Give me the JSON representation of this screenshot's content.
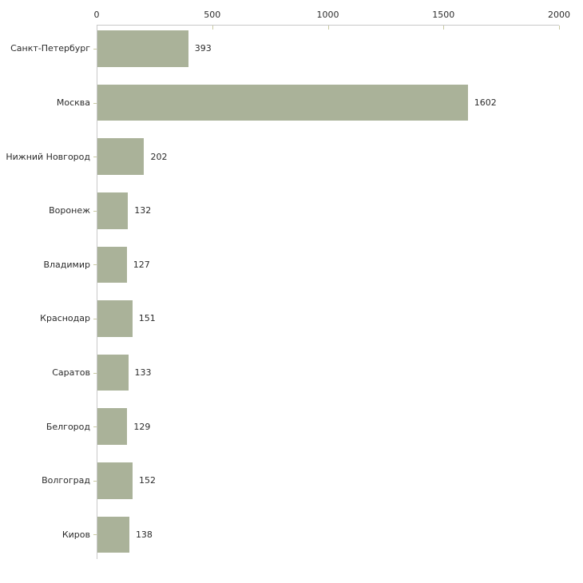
{
  "chart_data": {
    "type": "bar",
    "orientation": "horizontal",
    "title": "",
    "xlabel": "",
    "ylabel": "",
    "categories": [
      "Санкт-Петербург",
      "Москва",
      "Нижний Новгород",
      "Воронеж",
      "Владимир",
      "Краснодар",
      "Саратов",
      "Белгород",
      "Волгоград",
      "Киров"
    ],
    "values": [
      393,
      1602,
      202,
      132,
      127,
      151,
      133,
      129,
      152,
      138
    ],
    "value_labels": [
      "393",
      "1602",
      "202",
      "132",
      "127",
      "151",
      "133",
      "129",
      "152",
      "138"
    ],
    "xlim": [
      0,
      2000
    ],
    "x_ticks": [
      0,
      500,
      1000,
      1500,
      2000
    ],
    "x_tick_labels": [
      "0",
      "500",
      "1000",
      "1500",
      "2000"
    ],
    "grid": false,
    "legend_position": "none",
    "colors": {
      "bar_fill": "#aab299",
      "axis_line": "#c8c8c8",
      "tick_mark": "#c9c9a1",
      "text": "#2b2b2b",
      "background": "#ffffff"
    }
  }
}
